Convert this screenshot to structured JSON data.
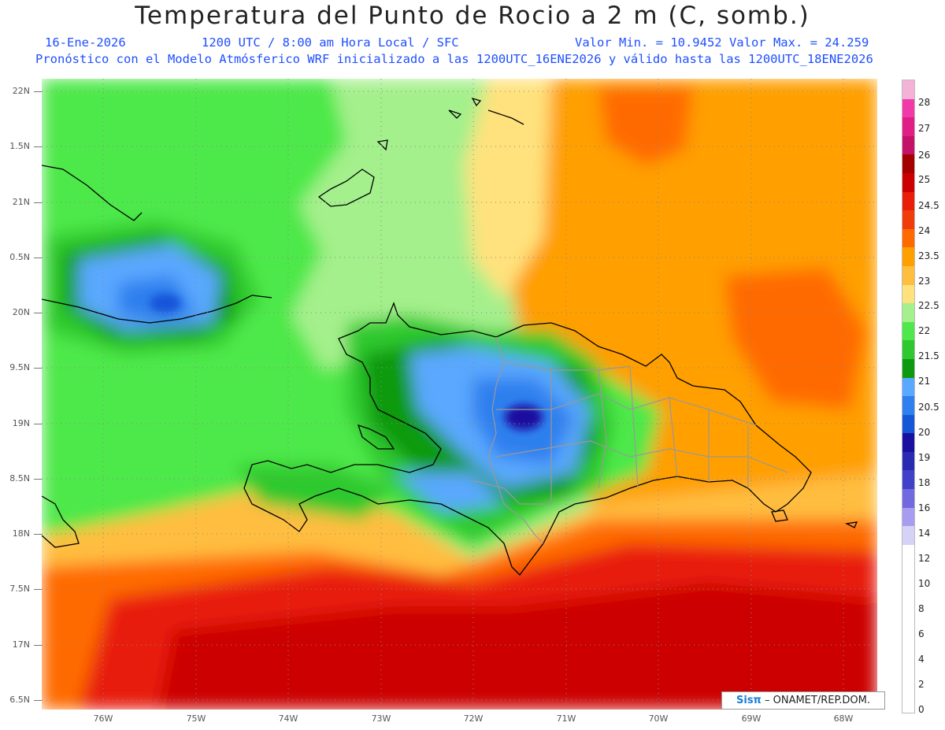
{
  "title": "Temperatura del Punto de Rocio a 2 m (C, somb.)",
  "info": {
    "date": "16-Ene-2026",
    "time": "1200 UTC / 8:00 am Hora Local / SFC",
    "value_range": "Valor Min. = 10.9452  Valor Max. = 24.259",
    "forecast_note": "Pronóstico con el Modelo Atmósferico WRF inicializado a las 1200UTC_16ENE2026 y válido hasta las  1200UTC_18ENE2026"
  },
  "latitude_labels": [
    "22N",
    "1.5N",
    "21N",
    "0.5N",
    "20N",
    "9.5N",
    "19N",
    "8.5N",
    "18N",
    "7.5N",
    "17N",
    "6.5N"
  ],
  "longitude_labels": [
    "76W",
    "75W",
    "74W",
    "73W",
    "72W",
    "71W",
    "70W",
    "69W",
    "68W"
  ],
  "legend": {
    "labels": [
      "28",
      "27",
      "26",
      "25",
      "24.5",
      "24",
      "23.5",
      "23",
      "22.5",
      "22",
      "21.5",
      "21",
      "20.5",
      "20",
      "19",
      "18",
      "16",
      "14",
      "12",
      "10",
      "8",
      "6",
      "4",
      "2",
      "0"
    ],
    "colors": [
      "#f4b2d8",
      "#ef3aa8",
      "#e01e86",
      "#c31267",
      "#a40000",
      "#cc0000",
      "#e81e0a",
      "#f03c08",
      "#ff6a00",
      "#ff9f00",
      "#ffbe3f",
      "#ffe27d",
      "#a4f08c",
      "#4ee84a",
      "#2fc92f",
      "#0e9a0e",
      "#5aa8ff",
      "#2f7fee",
      "#1555d8",
      "#1a10a0",
      "#2a2ab0",
      "#4040c8",
      "#7268e0",
      "#a89cf0",
      "#d6d2f6",
      "#ffffff"
    ]
  },
  "credit": {
    "brand": "Sisπ",
    "org": " – ONAMET/REP.DOM."
  }
}
